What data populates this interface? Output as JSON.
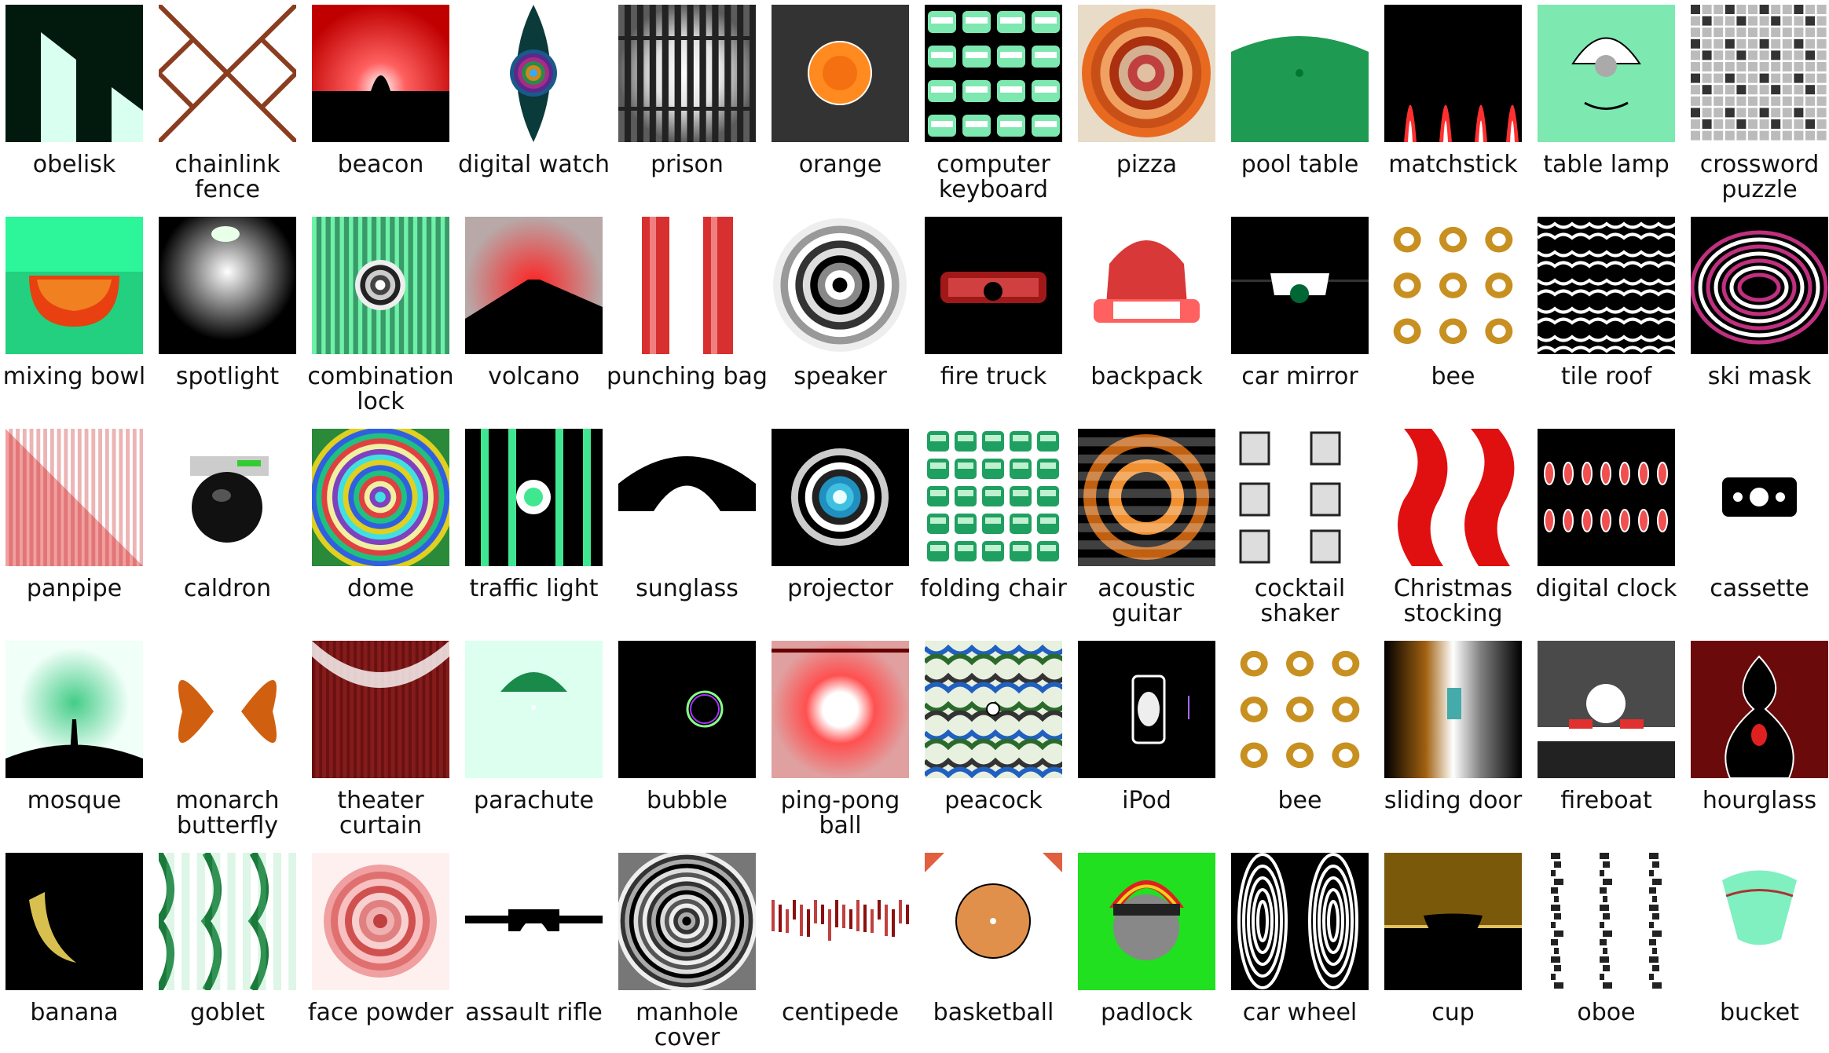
{
  "items": [
    {
      "label": "obelisk"
    },
    {
      "label": "chainlink fence"
    },
    {
      "label": "beacon"
    },
    {
      "label": "digital watch"
    },
    {
      "label": "prison"
    },
    {
      "label": "orange"
    },
    {
      "label": "computer keyboard"
    },
    {
      "label": "pizza"
    },
    {
      "label": "pool table"
    },
    {
      "label": "matchstick"
    },
    {
      "label": "table lamp"
    },
    {
      "label": "crossword puzzle"
    },
    {
      "label": "mixing bowl"
    },
    {
      "label": "spotlight"
    },
    {
      "label": "combination lock"
    },
    {
      "label": "volcano"
    },
    {
      "label": "punching bag"
    },
    {
      "label": "speaker"
    },
    {
      "label": "fire truck"
    },
    {
      "label": "backpack"
    },
    {
      "label": "car mirror"
    },
    {
      "label": "bee"
    },
    {
      "label": "tile roof"
    },
    {
      "label": "ski mask"
    },
    {
      "label": "panpipe"
    },
    {
      "label": "caldron"
    },
    {
      "label": "dome"
    },
    {
      "label": "traffic light"
    },
    {
      "label": "sunglass"
    },
    {
      "label": "projector"
    },
    {
      "label": "folding chair"
    },
    {
      "label": "acoustic guitar"
    },
    {
      "label": "cocktail shaker"
    },
    {
      "label": "Christmas stocking"
    },
    {
      "label": "digital clock"
    },
    {
      "label": "cassette"
    },
    {
      "label": "mosque"
    },
    {
      "label": "monarch butterfly"
    },
    {
      "label": "theater curtain"
    },
    {
      "label": "parachute"
    },
    {
      "label": "bubble"
    },
    {
      "label": "ping-pong ball"
    },
    {
      "label": "peacock"
    },
    {
      "label": "iPod"
    },
    {
      "label": "bee"
    },
    {
      "label": "sliding door"
    },
    {
      "label": "fireboat"
    },
    {
      "label": "hourglass"
    },
    {
      "label": "banana"
    },
    {
      "label": "goblet"
    },
    {
      "label": "face powder"
    },
    {
      "label": "assault rifle"
    },
    {
      "label": "manhole cover"
    },
    {
      "label": "centipede"
    },
    {
      "label": "basketball"
    },
    {
      "label": "padlock"
    },
    {
      "label": "car wheel"
    },
    {
      "label": "cup"
    },
    {
      "label": "oboe"
    },
    {
      "label": "bucket"
    }
  ]
}
